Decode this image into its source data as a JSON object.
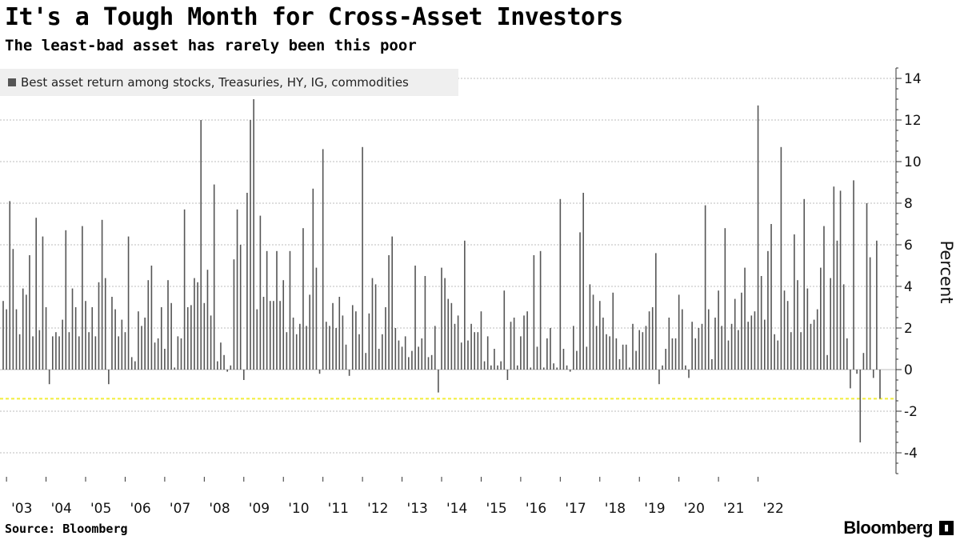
{
  "title": "It's a Tough Month for Cross-Asset Investors",
  "subtitle": "The least-bad asset has rarely been this poor",
  "source": "Source: Bloomberg",
  "brand": "Bloomberg",
  "colors": {
    "bar": "#555555",
    "grid": "#bdbdbd",
    "threshold": "#f2ee3a"
  },
  "chart_data": {
    "type": "bar",
    "ylabel": "Percent",
    "ylim": [
      -5,
      14.5
    ],
    "yticks": [
      -4,
      -2,
      0,
      2,
      4,
      6,
      8,
      10,
      12,
      14
    ],
    "grid": true,
    "legend": {
      "position": "top-left",
      "entries": [
        "Best asset return among stocks, Treasuries, HY, IG, commodities"
      ]
    },
    "threshold_line": -1.4,
    "x_tick_labels": [
      "'03",
      "'04",
      "'05",
      "'06",
      "'07",
      "'08",
      "'09",
      "'10",
      "'11",
      "'12",
      "'13",
      "'14",
      "'15",
      "'16",
      "'17",
      "'18",
      "'19",
      "'20",
      "'21",
      "'22"
    ],
    "x_start": "2002-12",
    "series": [
      {
        "values": [
          3.3,
          2.9,
          8.1,
          5.8,
          2.9,
          1.7,
          3.9,
          3.6,
          5.5,
          1.6,
          7.3,
          1.9,
          6.4,
          3.0,
          -0.7,
          1.6,
          1.8,
          1.6,
          2.4,
          6.7,
          1.8,
          3.9,
          3.0,
          1.6,
          6.9,
          3.3,
          1.8,
          3.0,
          1.6,
          4.2,
          7.2,
          4.4,
          -0.7,
          3.5,
          2.9,
          1.6,
          2.4,
          1.8,
          6.4,
          0.6,
          0.4,
          2.8,
          2.1,
          2.5,
          4.3,
          5.0,
          1.3,
          1.5,
          3.0,
          1.0,
          4.3,
          3.2,
          0.1,
          1.6,
          1.5,
          7.7,
          3.0,
          3.1,
          4.4,
          4.2,
          12.0,
          3.2,
          4.8,
          2.6,
          8.9,
          0.4,
          1.3,
          0.7,
          -0.1,
          0.2,
          5.3,
          7.7,
          6.0,
          -0.5,
          8.5,
          12.0,
          13.0,
          2.9,
          7.4,
          3.5,
          5.7,
          3.3,
          3.3,
          5.7,
          3.3,
          4.3,
          1.8,
          5.7,
          2.5,
          1.7,
          2.2,
          6.8,
          2.1,
          3.6,
          8.7,
          4.9,
          -0.2,
          10.6,
          2.3,
          2.1,
          3.2,
          2.0,
          3.5,
          2.6,
          1.2,
          -0.3,
          3.1,
          2.8,
          1.7,
          10.7,
          0.8,
          2.7,
          4.4,
          4.1,
          1.0,
          1.7,
          3.0,
          5.5,
          6.4,
          2.0,
          1.4,
          1.1,
          1.6,
          0.6,
          0.9,
          5.0,
          1.1,
          1.5,
          4.5,
          0.6,
          0.7,
          2.1,
          -1.1,
          4.9,
          4.4,
          3.4,
          3.2,
          2.2,
          2.6,
          1.3,
          6.2,
          1.4,
          2.2,
          1.8,
          1.8,
          2.8,
          0.4,
          1.6,
          0.2,
          1.0,
          0.2,
          0.4,
          3.8,
          -0.5,
          2.3,
          2.5,
          0.2,
          1.6,
          2.6,
          2.8,
          0.1,
          5.5,
          1.1,
          5.7,
          0.1,
          1.5,
          2.0,
          0.3,
          0.1,
          8.2,
          1.0,
          0.2,
          -0.1,
          2.1,
          0.9,
          6.6,
          8.5,
          1.1,
          4.1,
          3.6,
          2.1,
          3.3,
          2.5,
          1.7,
          1.6,
          3.7,
          1.5,
          0.5,
          1.2,
          1.2,
          0.1,
          2.2,
          0.9,
          1.9,
          1.8,
          2.1,
          2.8,
          3.0,
          5.6,
          -0.7,
          0.2,
          1.0,
          2.5,
          1.5,
          1.5,
          3.6,
          2.9,
          0.2,
          -0.4,
          2.3,
          1.5,
          2.0,
          2.2,
          7.9,
          2.9,
          0.5,
          2.5,
          3.8,
          2.1,
          6.8,
          1.4,
          2.2,
          3.4,
          1.9,
          3.7,
          4.9,
          2.3,
          2.6,
          2.8,
          12.7,
          4.5,
          2.4,
          5.7,
          7.0,
          1.7,
          1.4,
          10.7,
          3.8,
          3.3,
          1.8,
          6.5,
          4.3,
          1.8,
          8.2,
          3.9,
          2.2,
          2.4,
          2.9,
          4.9,
          6.9,
          0.7,
          4.4,
          8.8,
          6.2,
          8.6,
          4.1,
          1.5,
          -0.9,
          9.1,
          -0.2,
          -3.5,
          0.8,
          8.0,
          5.4,
          -0.4,
          6.2,
          -1.4
        ]
      }
    ]
  }
}
